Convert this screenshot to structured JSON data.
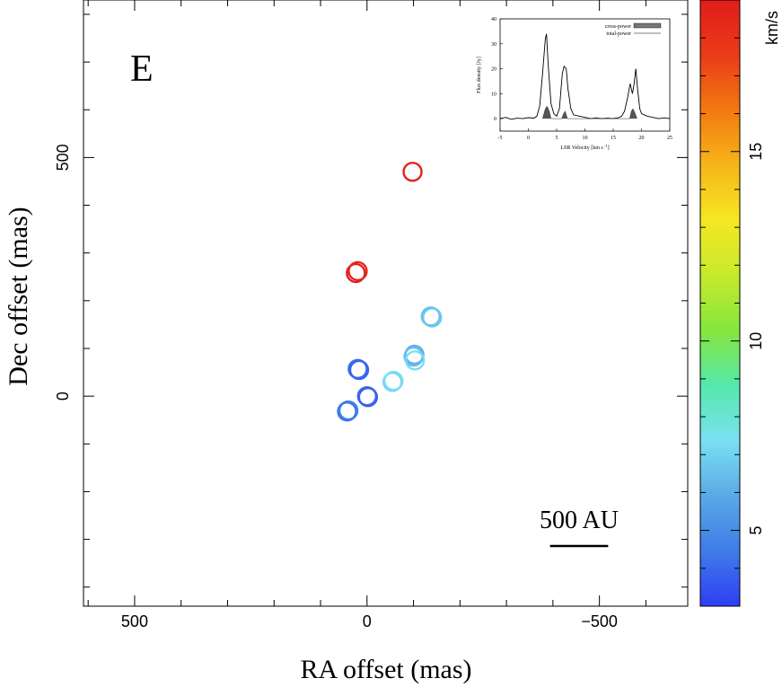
{
  "chart_data": [
    {
      "type": "scatter",
      "panel_label": "E",
      "xlabel": "RA offset (mas)",
      "ylabel": "Dec offset (mas)",
      "xlim": [
        610,
        -690
      ],
      "ylim": [
        -440,
        830
      ],
      "x_ticks": [
        500,
        0,
        -500
      ],
      "x_tick_labels": [
        "500",
        "0",
        "−500"
      ],
      "y_ticks": [
        0,
        500
      ],
      "y_tick_labels": [
        "0",
        "500"
      ],
      "scale_bar_label": "500 AU",
      "scale_bar_mas": 125,
      "points": [
        {
          "ra": -98,
          "dec": 470,
          "v": 18.7
        },
        {
          "ra": 24,
          "dec": 258,
          "v": 18.9
        },
        {
          "ra": 20,
          "dec": 262,
          "v": 18.5
        },
        {
          "ra": -140,
          "dec": 165,
          "v": 6.8
        },
        {
          "ra": -137,
          "dec": 167,
          "v": 6.6
        },
        {
          "ra": -102,
          "dec": 87,
          "v": 6.1
        },
        {
          "ra": -100,
          "dec": 83,
          "v": 6.4
        },
        {
          "ra": -103,
          "dec": 75,
          "v": 7.3
        },
        {
          "ra": 20,
          "dec": 57,
          "v": 4.1
        },
        {
          "ra": 17,
          "dec": 55,
          "v": 3.9
        },
        {
          "ra": -55,
          "dec": 30,
          "v": 6.9
        },
        {
          "ra": -57,
          "dec": 32,
          "v": 7.4
        },
        {
          "ra": 0,
          "dec": 0,
          "v": 4.2
        },
        {
          "ra": -2,
          "dec": -2,
          "v": 3.8
        },
        {
          "ra": 40,
          "dec": -30,
          "v": 4.8
        },
        {
          "ra": 43,
          "dec": -32,
          "v": 4.3
        }
      ]
    },
    {
      "type": "line",
      "title": "inset spectrum",
      "xlabel": "LSR Velocity [km s",
      "xlabel_sup": "-1",
      "xlabel_end": "]",
      "ylabel": "Flux density [Jy]",
      "xlim": [
        -5,
        25
      ],
      "ylim": [
        -5,
        40
      ],
      "x_ticks": [
        -5,
        0,
        5,
        10,
        15,
        20,
        25
      ],
      "y_ticks": [
        0,
        10,
        20,
        30,
        40
      ],
      "legend": [
        "cross-power",
        "total-power"
      ],
      "legend_position": "top-right",
      "series": [
        {
          "name": "total-power",
          "x": [
            -5,
            -4,
            -3,
            -2,
            -1,
            0,
            1,
            1.5,
            2,
            2.5,
            3,
            3.2,
            3.5,
            4,
            4.5,
            5,
            5.5,
            6,
            6.3,
            6.7,
            7,
            7.5,
            8,
            9,
            10,
            11,
            12,
            13,
            14,
            15,
            16,
            16.5,
            17,
            17.5,
            18,
            18.4,
            18.7,
            19,
            19.3,
            19.7,
            20,
            21,
            22,
            23,
            24,
            25
          ],
          "values": [
            0,
            0.5,
            -0.3,
            0.2,
            0,
            0.4,
            0.2,
            1,
            5,
            18,
            32,
            34,
            22,
            6,
            2,
            1,
            4,
            18,
            21,
            20,
            12,
            4,
            1.5,
            1,
            0.5,
            0,
            0.3,
            0,
            0.2,
            0,
            0.4,
            1,
            3,
            8,
            14,
            10,
            14,
            20,
            12,
            4,
            2,
            1,
            0.5,
            0,
            0.3,
            0
          ]
        },
        {
          "name": "cross-power",
          "x": [
            2.5,
            3,
            3.3,
            3.7,
            4,
            5.9,
            6.2,
            6.5,
            6.9,
            17.9,
            18.2,
            18.5,
            18.9,
            19.2
          ],
          "values": [
            0,
            4,
            5,
            3,
            0,
            0,
            2,
            3,
            0,
            0,
            3,
            4,
            2,
            0
          ]
        }
      ]
    },
    {
      "type": "heatmap",
      "title": "colorbar",
      "label": "km/s",
      "cmap_stops": [
        "#2f3df5",
        "#3f7ce8",
        "#5aa9e6",
        "#7ae0f2",
        "#55e8ab",
        "#84e63e",
        "#c7ea2b",
        "#f5e823",
        "#f6b51a",
        "#f27a10",
        "#ea3b18",
        "#e21c1c"
      ],
      "vmin": 3,
      "vmax": 19,
      "ticks": [
        5,
        10,
        15
      ],
      "tick_labels": [
        "5",
        "10",
        "15"
      ]
    }
  ]
}
